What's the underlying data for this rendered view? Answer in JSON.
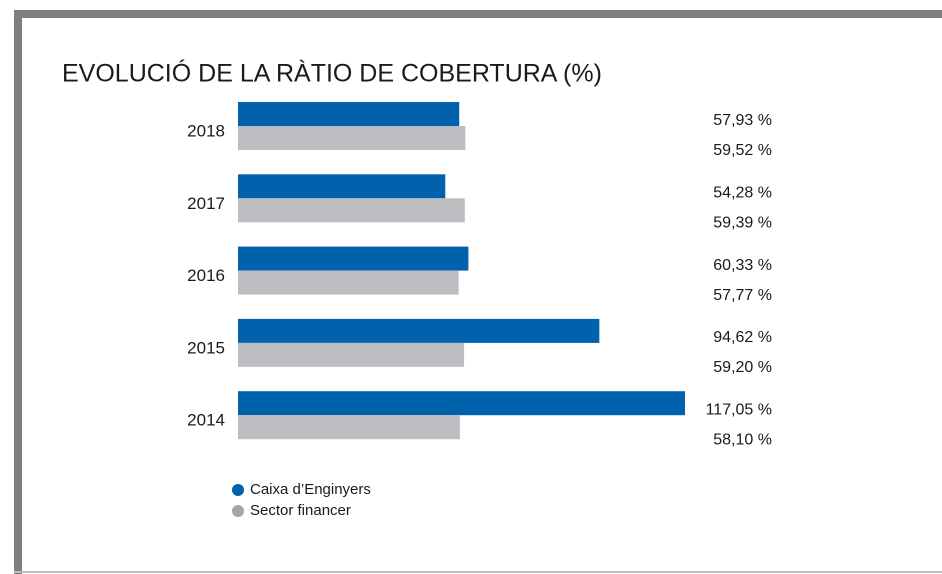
{
  "chart_data": {
    "type": "bar",
    "orientation": "horizontal",
    "title": "EVOLUCIÓ DE LA RÀTIO DE COBERTURA (%)",
    "categories": [
      "2018",
      "2017",
      "2016",
      "2015",
      "2014"
    ],
    "series": [
      {
        "name": "Caixa d’Enginyers",
        "color": "#0061ac",
        "values": [
          57.93,
          54.28,
          60.33,
          94.62,
          117.05
        ],
        "value_labels": [
          "57,93 %",
          "54,28 %",
          "60,33 %",
          "94,62 %",
          "117,05 %"
        ]
      },
      {
        "name": "Sector financer",
        "color": "#bcbdc0",
        "values": [
          59.52,
          59.39,
          57.77,
          59.2,
          58.1
        ],
        "value_labels": [
          "59,52 %",
          "59,39 %",
          "57,77 %",
          "59,20 %",
          "58,10 %"
        ]
      }
    ]
  }
}
